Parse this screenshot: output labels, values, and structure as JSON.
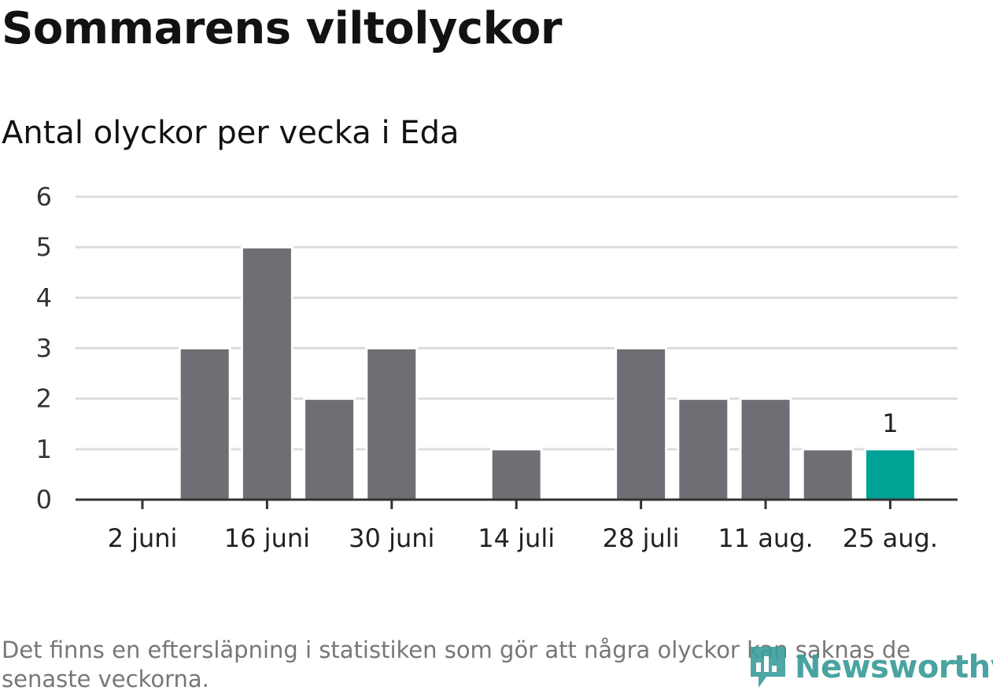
{
  "header": {
    "title": "Sommarens viltolyckor",
    "subtitle": "Antal olyckor per vecka i Eda"
  },
  "chart_data": {
    "type": "bar",
    "title": "Sommarens viltolyckor",
    "subtitle": "Antal olyckor per vecka i Eda",
    "xlabel": "",
    "ylabel": "",
    "x_tick_labels": [
      "2 juni",
      "16 juni",
      "30 juni",
      "14 juli",
      "28 juli",
      "11 aug.",
      "25 aug."
    ],
    "categories": [
      "2 juni",
      "9 juni",
      "16 juni",
      "23 juni",
      "30 juni",
      "7 juli",
      "14 juli",
      "21 juli",
      "28 juli",
      "4 aug.",
      "11 aug.",
      "18 aug.",
      "25 aug."
    ],
    "values": [
      0,
      3,
      5,
      2,
      3,
      0,
      1,
      0,
      3,
      2,
      2,
      1,
      1
    ],
    "highlight_index": 12,
    "highlight_label": "1",
    "ylim": [
      0,
      6
    ],
    "yticks": [
      0,
      1,
      2,
      3,
      4,
      5,
      6
    ],
    "grid": true,
    "colors": {
      "bar": "#6f6e74",
      "highlight": "#00a396",
      "grid": "#dcdcdc",
      "axis": "#333333"
    }
  },
  "footer": {
    "note": "Det finns en eftersläpning i statistiken som gör att några olyckor kan saknas de senaste veckorna.",
    "logo_text": "Newsworthy",
    "logo_icon": "newsworthy-logo-icon"
  }
}
